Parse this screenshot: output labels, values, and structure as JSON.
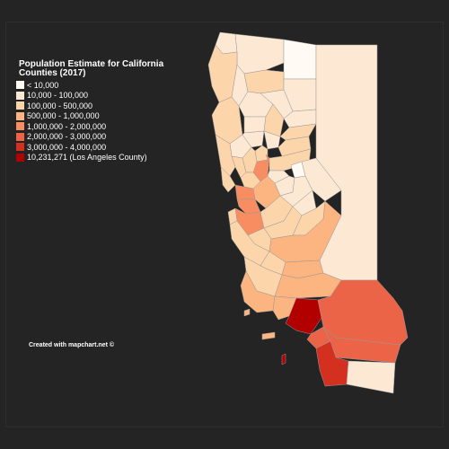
{
  "map": {
    "title": "Population Estimate for California Counties (2017)",
    "credit": "Created with mapchart.net ©",
    "border_color": "#9a9a9a",
    "legend": [
      {
        "label": "< 10,000",
        "color": "#fffaf4"
      },
      {
        "label": "10,000 - 100,000",
        "color": "#fde9d3"
      },
      {
        "label": "100,000 - 500,000",
        "color": "#fdd5ab"
      },
      {
        "label": "500,000 - 1,000,000",
        "color": "#fcb480"
      },
      {
        "label": "1,000,000 - 2,000,000",
        "color": "#f98d62"
      },
      {
        "label": "2,000,000 - 3,000,000",
        "color": "#ec6448"
      },
      {
        "label": "3,000,000 - 4,000,000",
        "color": "#d3301f"
      },
      {
        "label": "10,231,271 (Los Angeles County)",
        "color": "#b20000"
      }
    ],
    "counties": {
      "modoc": 0,
      "alpine": 0,
      "siskiyou": 1,
      "trinity": 1,
      "lassen": 1,
      "plumas": 1,
      "sierra": 1,
      "glenn": 1,
      "colusa": 1,
      "lake": 1,
      "mariposa": 1,
      "inyo": 1,
      "mono": 1,
      "tuolumne": 1,
      "calaveras": 1,
      "amador": 1,
      "delnorte": 1,
      "tehama": 1,
      "yuba": 1,
      "humboldt": 2,
      "shasta": 2,
      "mendocino": 2,
      "butte": 2,
      "sutter": 2,
      "yolo": 2,
      "placer": 2,
      "eldorado": 2,
      "nevada": 2,
      "napa": 2,
      "marin": 2,
      "solano": 2,
      "merced": 2,
      "stanislaus": 2,
      "madera": 2,
      "kings": 2,
      "sanbenito": 2,
      "montereylo": 2,
      "slo": 2,
      "santacruz": 2,
      "sonoma": 2,
      "fresno": 3,
      "kern": 3,
      "tulare": 3,
      "ventura": 3,
      "santabarbara": 3,
      "sanjoaquin": 3,
      "sacramento": 4,
      "alameda": 4,
      "contracosta": 4,
      "santaclara": 4,
      "riverside": 5,
      "sanbernardino": 5,
      "orange": 5,
      "sandiego": 6,
      "losangeles": 7
    }
  }
}
